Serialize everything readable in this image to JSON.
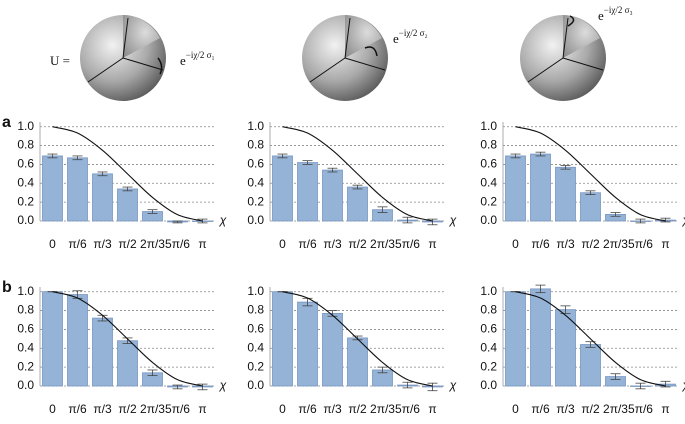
{
  "header": {
    "u_label": "U =",
    "operators": [
      {
        "base": "e",
        "exponent": "−iχ/2 σ₁"
      },
      {
        "base": "e",
        "exponent": "−iχ/2 σ₂"
      },
      {
        "base": "e",
        "exponent": "−iχ/2 σ₃"
      }
    ]
  },
  "chart_data": [
    {
      "type": "bar",
      "panel": "a",
      "categories": [
        "0",
        "π/6",
        "π/3",
        "π/2",
        "2π/3",
        "5π/6",
        "π"
      ],
      "values": [
        0.69,
        0.67,
        0.5,
        0.34,
        0.1,
        -0.01,
        0.0
      ],
      "errors": [
        0.02,
        0.02,
        0.02,
        0.02,
        0.02,
        0.01,
        0.02
      ],
      "fit_values": [
        1,
        0.933,
        0.75,
        0.5,
        0.25,
        0.067,
        0
      ],
      "color": "#95b3d7",
      "fit_color": "#111111",
      "xlabel": "χ",
      "ylim": [
        0,
        1.05
      ],
      "yticks": [
        {
          "value": 0,
          "label": "0.0"
        },
        0.2,
        0.4,
        0.6,
        0.8,
        {
          "value": 1,
          "label": "1.0"
        }
      ],
      "grid": true
    },
    {
      "type": "bar",
      "categories": [
        "0",
        "π/6",
        "π/3",
        "π/2",
        "2π/3",
        "5π/6",
        "π"
      ],
      "values": [
        0.69,
        0.62,
        0.54,
        0.36,
        0.12,
        0.01,
        -0.01
      ],
      "errors": [
        0.02,
        0.02,
        0.02,
        0.02,
        0.03,
        0.03,
        0.03
      ],
      "fit_values": [
        1,
        0.933,
        0.75,
        0.5,
        0.25,
        0.067,
        0
      ],
      "color": "#95b3d7",
      "fit_color": "#111111",
      "xlabel": "χ",
      "ylim": [
        0,
        1.05
      ],
      "yticks": [
        {
          "value": 0,
          "label": "0.0"
        },
        0.2,
        0.4,
        0.6,
        0.8,
        {
          "value": 1,
          "label": "1.0"
        }
      ],
      "grid": true
    },
    {
      "type": "bar",
      "categories": [
        "0",
        "π/6",
        "π/3",
        "π/2",
        "2π/3",
        "5π/6",
        "π"
      ],
      "values": [
        0.69,
        0.71,
        0.57,
        0.3,
        0.07,
        0.0,
        0.01
      ],
      "errors": [
        0.02,
        0.02,
        0.02,
        0.02,
        0.02,
        0.02,
        0.02
      ],
      "fit_values": [
        1,
        0.933,
        0.75,
        0.5,
        0.25,
        0.067,
        0
      ],
      "color": "#95b3d7",
      "fit_color": "#111111",
      "xlabel": "χ",
      "ylim": [
        0,
        1.05
      ],
      "yticks": [
        {
          "value": 0,
          "label": "0.0"
        },
        0.2,
        0.4,
        0.6,
        0.8,
        {
          "value": 1,
          "label": "1.0"
        }
      ],
      "grid": true
    },
    {
      "type": "bar",
      "panel": "b",
      "categories": [
        "0",
        "π/6",
        "π/3",
        "π/2",
        "2π/3",
        "5π/6",
        "π"
      ],
      "values": [
        1.0,
        0.97,
        0.72,
        0.48,
        0.14,
        -0.01,
        -0.01
      ],
      "errors": [
        0,
        0.04,
        0.03,
        0.03,
        0.03,
        0.02,
        0.03
      ],
      "fit_values": [
        1,
        0.933,
        0.75,
        0.5,
        0.25,
        0.067,
        0
      ],
      "color": "#95b3d7",
      "fit_color": "#111111",
      "xlabel": "χ",
      "ylim": [
        0,
        1.05
      ],
      "yticks": [
        {
          "value": 0,
          "label": "0.0"
        },
        0.2,
        0.4,
        0.6,
        0.8,
        {
          "value": 1,
          "label": "1.0"
        }
      ],
      "grid": true
    },
    {
      "type": "bar",
      "categories": [
        "0",
        "π/6",
        "π/3",
        "π/2",
        "2π/3",
        "5π/6",
        "π"
      ],
      "values": [
        1.0,
        0.89,
        0.77,
        0.51,
        0.17,
        0.01,
        -0.01
      ],
      "errors": [
        0,
        0.04,
        0.03,
        0.02,
        0.03,
        0.03,
        0.04
      ],
      "fit_values": [
        1,
        0.933,
        0.75,
        0.5,
        0.25,
        0.067,
        0
      ],
      "color": "#95b3d7",
      "fit_color": "#111111",
      "xlabel": "χ",
      "ylim": [
        0,
        1.05
      ],
      "yticks": [
        {
          "value": 0,
          "label": "0.0"
        },
        0.2,
        0.4,
        0.6,
        0.8,
        {
          "value": 1,
          "label": "1.0"
        }
      ],
      "grid": true
    },
    {
      "type": "bar",
      "categories": [
        "0",
        "π/6",
        "π/3",
        "π/2",
        "2π/3",
        "5π/6",
        "π"
      ],
      "values": [
        1.0,
        1.03,
        0.81,
        0.44,
        0.1,
        0.0,
        0.02
      ],
      "errors": [
        0,
        0.04,
        0.04,
        0.03,
        0.03,
        0.03,
        0.03
      ],
      "fit_values": [
        1,
        0.933,
        0.75,
        0.5,
        0.25,
        0.067,
        0
      ],
      "color": "#95b3d7",
      "fit_color": "#111111",
      "xlabel": "χ",
      "ylim": [
        0,
        1.05
      ],
      "yticks": [
        {
          "value": 0,
          "label": "0.0"
        },
        0.2,
        0.4,
        0.6,
        0.8,
        {
          "value": 1,
          "label": "1.0"
        }
      ],
      "grid": true
    }
  ]
}
